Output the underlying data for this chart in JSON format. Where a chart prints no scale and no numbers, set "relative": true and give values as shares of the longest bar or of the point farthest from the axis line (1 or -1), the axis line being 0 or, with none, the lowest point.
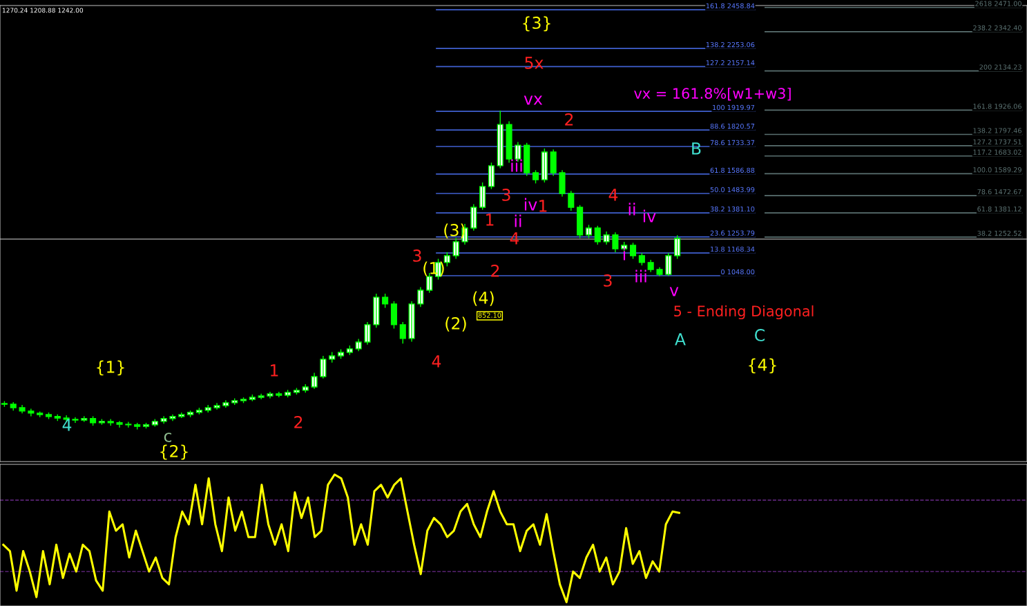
{
  "chart_data": [
    {
      "type": "candlestick",
      "color": "#00ff00",
      "tick_labels": false,
      "ylim": [
        62,
        2481
      ],
      "categories": [
        null,
        null,
        null,
        null,
        null,
        null,
        null,
        null,
        null,
        null,
        null,
        null,
        null,
        null,
        null,
        null,
        null,
        null,
        null,
        null,
        null,
        null,
        null,
        null,
        null,
        null,
        null,
        null,
        null,
        null,
        null,
        null,
        null,
        null,
        null,
        null,
        null,
        null,
        null,
        null,
        null,
        null,
        null,
        null,
        null,
        null,
        null,
        null,
        null,
        null,
        null,
        null,
        null,
        null,
        null,
        null,
        null,
        null,
        null,
        null,
        null,
        null,
        null,
        null,
        null,
        null,
        null,
        null,
        null,
        null,
        null,
        null,
        null,
        null,
        null,
        null,
        null
      ],
      "ohlc": [
        [
          370,
          380,
          355,
          366
        ],
        [
          366,
          375,
          335,
          348
        ],
        [
          348,
          360,
          320,
          330
        ],
        [
          330,
          340,
          305,
          319
        ],
        [
          319,
          325,
          300,
          311
        ],
        [
          311,
          320,
          290,
          301
        ],
        [
          301,
          310,
          280,
          293
        ],
        [
          293,
          305,
          275,
          286
        ],
        [
          286,
          295,
          270,
          282
        ],
        [
          282,
          300,
          275,
          290
        ],
        [
          290,
          300,
          255,
          268
        ],
        [
          268,
          285,
          260,
          275
        ],
        [
          275,
          285,
          255,
          268
        ],
        [
          268,
          275,
          245,
          260
        ],
        [
          260,
          270,
          245,
          257
        ],
        [
          257,
          265,
          235,
          249
        ],
        [
          249,
          265,
          240,
          257
        ],
        [
          257,
          285,
          250,
          275
        ],
        [
          275,
          300,
          265,
          290
        ],
        [
          290,
          310,
          280,
          301
        ],
        [
          301,
          320,
          295,
          311
        ],
        [
          311,
          330,
          300,
          323
        ],
        [
          323,
          345,
          315,
          334
        ],
        [
          334,
          360,
          325,
          348
        ],
        [
          348,
          370,
          340,
          359
        ],
        [
          359,
          385,
          350,
          374
        ],
        [
          374,
          395,
          365,
          385
        ],
        [
          385,
          400,
          375,
          392
        ],
        [
          392,
          415,
          385,
          403
        ],
        [
          403,
          420,
          395,
          410
        ],
        [
          410,
          430,
          400,
          421
        ],
        [
          421,
          430,
          405,
          414
        ],
        [
          414,
          440,
          405,
          429
        ],
        [
          429,
          450,
          420,
          440
        ],
        [
          440,
          470,
          430,
          458
        ],
        [
          458,
          530,
          450,
          513
        ],
        [
          513,
          620,
          505,
          605
        ],
        [
          605,
          640,
          590,
          623
        ],
        [
          623,
          655,
          610,
          641
        ],
        [
          641,
          675,
          630,
          660
        ],
        [
          660,
          710,
          650,
          696
        ],
        [
          696,
          800,
          685,
          788
        ],
        [
          788,
          950,
          775,
          934
        ],
        [
          934,
          950,
          880,
          898
        ],
        [
          898,
          910,
          770,
          788
        ],
        [
          788,
          800,
          690,
          715
        ],
        [
          715,
          910,
          700,
          898
        ],
        [
          898,
          985,
          885,
          971
        ],
        [
          971,
          1060,
          960,
          1044
        ],
        [
          1044,
          1135,
          1030,
          1118
        ],
        [
          1118,
          1170,
          1100,
          1154
        ],
        [
          1154,
          1245,
          1140,
          1228
        ],
        [
          1228,
          1320,
          1215,
          1301
        ],
        [
          1301,
          1425,
          1290,
          1411
        ],
        [
          1411,
          1540,
          1400,
          1521
        ],
        [
          1521,
          1645,
          1510,
          1631
        ],
        [
          1631,
          1920,
          1620,
          1850
        ],
        [
          1850,
          1865,
          1650,
          1667
        ],
        [
          1667,
          1755,
          1655,
          1740
        ],
        [
          1740,
          1750,
          1580,
          1594
        ],
        [
          1594,
          1605,
          1540,
          1557
        ],
        [
          1557,
          1720,
          1545,
          1704
        ],
        [
          1704,
          1715,
          1580,
          1594
        ],
        [
          1594,
          1605,
          1470,
          1484
        ],
        [
          1484,
          1495,
          1395,
          1411
        ],
        [
          1411,
          1420,
          1250,
          1264
        ],
        [
          1264,
          1315,
          1250,
          1301
        ],
        [
          1301,
          1310,
          1215,
          1228
        ],
        [
          1228,
          1280,
          1215,
          1264
        ],
        [
          1264,
          1275,
          1175,
          1191
        ],
        [
          1191,
          1225,
          1180,
          1209
        ],
        [
          1209,
          1220,
          1140,
          1154
        ],
        [
          1154,
          1165,
          1105,
          1118
        ],
        [
          1118,
          1130,
          1070,
          1081
        ],
        [
          1081,
          1090,
          1048,
          1055
        ],
        [
          1055,
          1165,
          1050,
          1154
        ],
        [
          1154,
          1260,
          1140,
          1246
        ]
      ],
      "ref_lines": [
        {
          "axis": "y",
          "value": 2458.84,
          "label": "161.8 2458.84",
          "color": "#4060d0"
        },
        {
          "axis": "y",
          "value": 2253.06,
          "label": "138.2 2253.06",
          "color": "#4060d0"
        },
        {
          "axis": "y",
          "value": 2157.14,
          "label": "127.2 2157.14",
          "color": "#4060d0"
        },
        {
          "axis": "y",
          "value": 1919.97,
          "label": "100 1919.97",
          "color": "#4060d0"
        },
        {
          "axis": "y",
          "value": 1820.57,
          "label": "88.6 1820.57",
          "color": "#4060d0"
        },
        {
          "axis": "y",
          "value": 1733.37,
          "label": "78.6 1733.37",
          "color": "#4060d0"
        },
        {
          "axis": "y",
          "value": 1586.88,
          "label": "61.8 1586.88",
          "color": "#4060d0"
        },
        {
          "axis": "y",
          "value": 1483.99,
          "label": "50.0 1483.99",
          "color": "#4060d0"
        },
        {
          "axis": "y",
          "value": 1381.1,
          "label": "38.2 1381.10",
          "color": "#4060d0"
        },
        {
          "axis": "y",
          "value": 1253.79,
          "label": "23.6 1253.79",
          "color": "#4060d0"
        },
        {
          "axis": "y",
          "value": 1168.34,
          "label": "13.8 1168.34",
          "color": "#4060d0"
        },
        {
          "axis": "y",
          "value": 1048.0,
          "label": "0 1048.00",
          "color": "#4060d0"
        },
        {
          "axis": "y",
          "value": 2471.0,
          "label": "2618 2471.00",
          "color": "#5a7070"
        },
        {
          "axis": "y",
          "value": 2342.4,
          "label": "238.2 2342.40",
          "color": "#5a7070"
        },
        {
          "axis": "y",
          "value": 2134.23,
          "label": "200 2134.23",
          "color": "#5a7070"
        },
        {
          "axis": "y",
          "value": 1926.06,
          "label": "161.8 1926.06",
          "color": "#5a7070"
        },
        {
          "axis": "y",
          "value": 1797.46,
          "label": "138.2 1797.46",
          "color": "#5a7070"
        },
        {
          "axis": "y",
          "value": 1737.51,
          "label": "127.2 1737.51",
          "color": "#5a7070"
        },
        {
          "axis": "y",
          "value": 1683.02,
          "label": "117.2 1683.02",
          "color": "#5a7070"
        },
        {
          "axis": "y",
          "value": 1589.29,
          "label": "100.0 1589.29",
          "color": "#5a7070"
        },
        {
          "axis": "y",
          "value": 1472.67,
          "label": "78.6 1472.67",
          "color": "#5a7070"
        },
        {
          "axis": "y",
          "value": 1381.12,
          "label": "61.8 1381.12",
          "color": "#5a7070"
        },
        {
          "axis": "y",
          "value": 1252.52,
          "label": "38.2 1252.52",
          "color": "#5a7070"
        },
        {
          "axis": "y",
          "value": 1242.0,
          "color": "#909090"
        }
      ],
      "annotations": [
        "1270.24 1208.88 1242.00",
        "{3}",
        "5x",
        "vx",
        "2",
        "vx = 161.8%[w1+w3]",
        "B",
        "iii",
        "3",
        "iv",
        "1",
        "4",
        "ii",
        "iv",
        "1",
        "ii",
        "(3)",
        "4",
        "3",
        "i",
        "2",
        "(1)",
        "iii",
        "3",
        "v",
        "(4)",
        "852.10",
        "(2)",
        "5 - Ending Diagonal",
        "A",
        "C",
        "{4}",
        "4",
        "{1}",
        "1",
        "2",
        "{2}",
        "c",
        "4"
      ]
    },
    {
      "type": "line",
      "relative": true,
      "color": "#ffff00",
      "tick_labels": false,
      "categories": [
        null,
        null,
        null,
        null,
        null,
        null,
        null,
        null,
        null,
        null,
        null,
        null,
        null,
        null,
        null,
        null,
        null,
        null,
        null,
        null,
        null,
        null,
        null,
        null,
        null,
        null,
        null,
        null,
        null,
        null,
        null,
        null,
        null,
        null,
        null,
        null,
        null,
        null,
        null,
        null,
        null,
        null,
        null,
        null,
        null,
        null,
        null,
        null,
        null,
        null,
        null,
        null,
        null,
        null,
        null,
        null,
        null,
        null,
        null,
        null,
        null,
        null,
        null,
        null,
        null,
        null,
        null,
        null,
        null,
        null,
        null,
        null,
        null,
        null,
        null,
        null,
        null,
        null,
        null,
        null,
        null,
        null,
        null,
        null,
        null,
        null,
        null,
        null,
        null,
        null,
        null,
        null,
        null,
        null,
        null,
        null,
        null,
        null,
        null,
        null,
        null,
        null,
        null
      ],
      "values": [
        0.45,
        0.4,
        0.09,
        0.4,
        0.24,
        0.04,
        0.4,
        0.14,
        0.45,
        0.19,
        0.38,
        0.24,
        0.45,
        0.4,
        0.17,
        0.09,
        0.71,
        0.56,
        0.61,
        0.35,
        0.56,
        0.4,
        0.24,
        0.35,
        0.19,
        0.14,
        0.51,
        0.71,
        0.61,
        0.92,
        0.61,
        0.97,
        0.61,
        0.4,
        0.82,
        0.56,
        0.71,
        0.51,
        0.51,
        0.92,
        0.61,
        0.45,
        0.61,
        0.4,
        0.86,
        0.66,
        0.82,
        0.51,
        0.56,
        0.92,
        1.0,
        0.97,
        0.82,
        0.45,
        0.61,
        0.45,
        0.87,
        0.92,
        0.82,
        0.92,
        0.97,
        0.71,
        0.45,
        0.22,
        0.56,
        0.66,
        0.61,
        0.51,
        0.56,
        0.71,
        0.77,
        0.61,
        0.51,
        0.71,
        0.87,
        0.71,
        0.61,
        0.61,
        0.4,
        0.56,
        0.61,
        0.45,
        0.69,
        0.4,
        0.14,
        0.0,
        0.24,
        0.19,
        0.35,
        0.45,
        0.24,
        0.35,
        0.14,
        0.24,
        0.58,
        0.3,
        0.4,
        0.19,
        0.32,
        0.24,
        0.61,
        0.71,
        0.7
      ],
      "ref_lines": [
        {
          "axis": "y",
          "value": 0.8,
          "color": "#6a2a8a",
          "line_style": "dashed"
        },
        {
          "axis": "y",
          "value": 0.24,
          "color": "#6a2a8a",
          "line_style": "dashed"
        }
      ]
    }
  ]
}
